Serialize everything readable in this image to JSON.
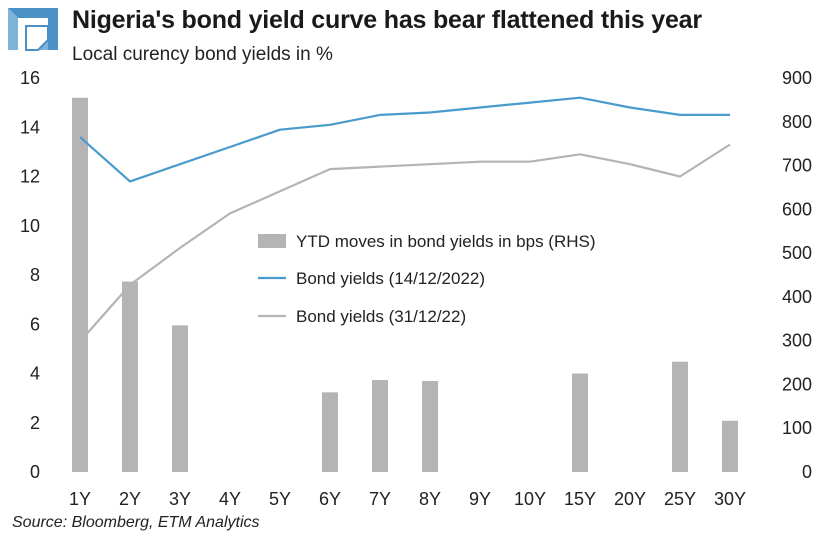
{
  "header": {
    "title": "Nigeria's bond yield curve has bear flattened this year",
    "subtitle": "Local curency bond yields in %"
  },
  "footer": {
    "source": "Source: Bloomberg, ETM Analytics"
  },
  "logo": {
    "icon": "impossible-triangle-logo",
    "color": "#4a90c4"
  },
  "colors": {
    "bars": "#b4b4b4",
    "line_current": "#4a9bcb",
    "line_previous": "#b4b4b4"
  },
  "chart_data": {
    "type": "bar",
    "categories": [
      "1Y",
      "2Y",
      "3Y",
      "4Y",
      "5Y",
      "6Y",
      "7Y",
      "8Y",
      "9Y",
      "10Y",
      "15Y",
      "20Y",
      "25Y",
      "30Y"
    ],
    "series": [
      {
        "name": "YTD moves in bond yields in bps (RHS)",
        "type": "bar",
        "axis": "right",
        "values": [
          855,
          435,
          335,
          null,
          null,
          182,
          210,
          208,
          null,
          null,
          225,
          null,
          252,
          117
        ]
      },
      {
        "name": "Bond yields (14/12/2022)",
        "type": "line",
        "axis": "left",
        "values": [
          13.6,
          11.8,
          12.5,
          13.2,
          13.9,
          14.1,
          14.5,
          14.6,
          14.8,
          15.0,
          15.2,
          14.8,
          14.5,
          14.5
        ]
      },
      {
        "name": "Bond yields (31/12/22)",
        "type": "line",
        "axis": "left",
        "values": [
          5.3,
          7.6,
          9.1,
          10.5,
          11.4,
          12.3,
          12.4,
          12.5,
          12.6,
          12.6,
          12.9,
          12.5,
          12.0,
          13.3
        ]
      }
    ],
    "y_left": {
      "min": 0,
      "max": 16,
      "ticks": [
        0,
        2,
        4,
        6,
        8,
        10,
        12,
        14,
        16
      ]
    },
    "y_right": {
      "min": 0,
      "max": 900,
      "ticks": [
        0,
        100,
        200,
        300,
        400,
        500,
        600,
        700,
        800,
        900
      ]
    },
    "legend_position": "center",
    "grid": false
  }
}
